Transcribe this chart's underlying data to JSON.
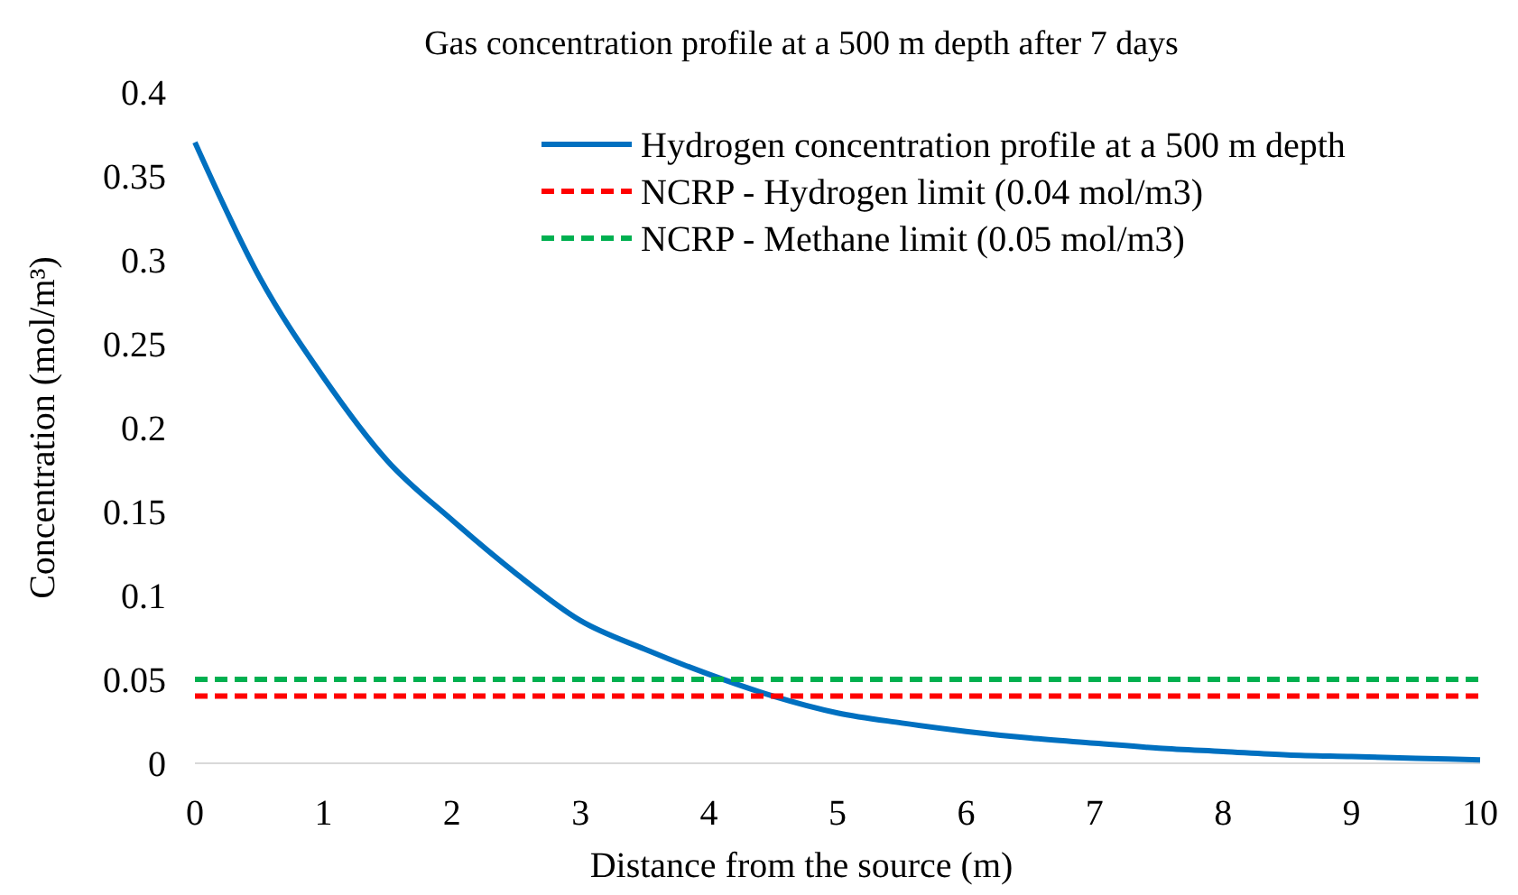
{
  "chart_data": {
    "type": "line",
    "title": "Gas concentration profile at a 500 m depth after 7 days",
    "xlabel": "Distance from the source (m)",
    "ylabel": "Concentration (mol/m³)",
    "xlim": [
      0,
      10
    ],
    "xticks": [
      0,
      1,
      2,
      3,
      4,
      5,
      6,
      7,
      8,
      9,
      10
    ],
    "ylim": [
      0,
      0.4
    ],
    "yticks": [
      0,
      0.05,
      0.1,
      0.15,
      0.2,
      0.25,
      0.3,
      0.35,
      0.4
    ],
    "grid": false,
    "legend": "top right",
    "marker": "none",
    "series": [
      {
        "name": "Hydrogen concentration profile at a 500 m depth",
        "color": "#0070c0",
        "line_style": "solid",
        "x": [
          0,
          0.5,
          1,
          1.5,
          2,
          2.5,
          3,
          3.5,
          4,
          4.5,
          5,
          5.5,
          6,
          6.5,
          7,
          7.5,
          8,
          8.5,
          9,
          9.5,
          10
        ],
        "values": [
          0.37,
          0.29,
          0.23,
          0.18,
          0.145,
          0.113,
          0.085,
          0.068,
          0.053,
          0.04,
          0.03,
          0.024,
          0.019,
          0.015,
          0.012,
          0.009,
          0.007,
          0.005,
          0.004,
          0.003,
          0.002
        ]
      },
      {
        "name": "NCRP - Hydrogen limit (0.04 mol/m3)",
        "color": "#ff0000",
        "line_style": "dashed",
        "x": [
          0,
          10
        ],
        "values": [
          0.04,
          0.04
        ]
      },
      {
        "name": "NCRP - Methane limit (0.05 mol/m3)",
        "color": "#00b050",
        "line_style": "dashed",
        "x": [
          0,
          10
        ],
        "values": [
          0.05,
          0.05
        ]
      }
    ]
  }
}
